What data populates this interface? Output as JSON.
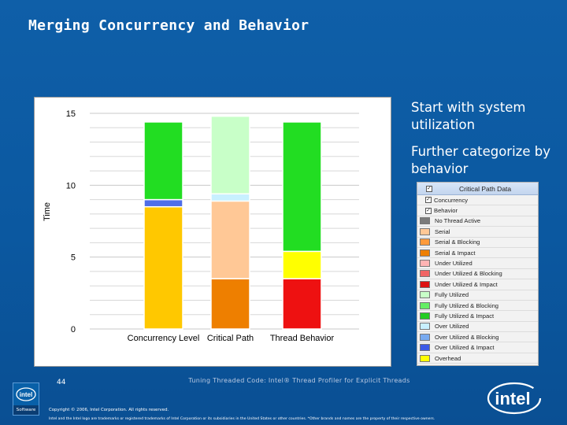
{
  "slide": {
    "title": "Merging Concurrency and Behavior",
    "callout_1": "Start with system utilization",
    "callout_2": "Further categorize by behavior",
    "footer_title": "Tuning Threaded Code: Intel® Thread Profiler for Explicit Threads",
    "page_number": "44",
    "copyright": "Copyright © 2006, Intel Corporation. All rights reserved.",
    "legal": "Intel and the Intel logo are trademarks or registered trademarks of Intel Corporation or its subsidiaries in the United States or other countries. *Other brands and names are the property of their respective owners.",
    "software_badge": "Software",
    "logo_text": "intel"
  },
  "chart_data": {
    "type": "bar",
    "stacked": true,
    "ylabel": "Time",
    "xlabel": "",
    "ylim": [
      0,
      15
    ],
    "yticks": [
      "0",
      "5",
      "10",
      "15"
    ],
    "grid": true,
    "categories": [
      "Concurrency Level",
      "Critical Path",
      "Thread Behavior"
    ],
    "stacks": [
      {
        "category": "Concurrency Level",
        "segments": [
          {
            "value": 8.5,
            "color": "#ffc800"
          },
          {
            "value": 0.5,
            "color": "#4f6ee8"
          },
          {
            "value": 5.4,
            "color": "#22dd22"
          }
        ]
      },
      {
        "category": "Critical Path",
        "segments": [
          {
            "value": 3.5,
            "color": "#ee7f00"
          },
          {
            "value": 5.4,
            "color": "#ffc896"
          },
          {
            "value": 0.5,
            "color": "#c8f0ff"
          },
          {
            "value": 5.4,
            "color": "#c8ffc8"
          }
        ]
      },
      {
        "category": "Thread Behavior",
        "segments": [
          {
            "value": 3.5,
            "color": "#ee1111"
          },
          {
            "value": 1.9,
            "color": "#ffff00"
          },
          {
            "value": 9.0,
            "color": "#22dd22"
          }
        ]
      }
    ]
  },
  "legend_panel": {
    "header": "Critical Path Data",
    "items": [
      {
        "label": "Concurrency",
        "checkbox": true,
        "color": ""
      },
      {
        "label": "Behavior",
        "checkbox": true,
        "color": ""
      },
      {
        "label": "No Thread Active",
        "checkbox": false,
        "color": "#7b7b7b"
      },
      {
        "label": "Serial",
        "checkbox": false,
        "color": "#ffc896"
      },
      {
        "label": "Serial & Blocking",
        "checkbox": false,
        "color": "#ff9b3c"
      },
      {
        "label": "Serial & Impact",
        "checkbox": false,
        "color": "#ee7f00"
      },
      {
        "label": "Under Utilized",
        "checkbox": false,
        "color": "#ffb4b4"
      },
      {
        "label": "Under Utilized & Blocking",
        "checkbox": false,
        "color": "#f06464"
      },
      {
        "label": "Under Utilized & Impact",
        "checkbox": false,
        "color": "#dd1111"
      },
      {
        "label": "Fully Utilized",
        "checkbox": false,
        "color": "#c8ffc8"
      },
      {
        "label": "Fully Utilized & Blocking",
        "checkbox": false,
        "color": "#64ee64"
      },
      {
        "label": "Fully Utilized & Impact",
        "checkbox": false,
        "color": "#22cc22"
      },
      {
        "label": "Over Utilized",
        "checkbox": false,
        "color": "#c8f0ff"
      },
      {
        "label": "Over Utilized & Blocking",
        "checkbox": false,
        "color": "#78aaf0"
      },
      {
        "label": "Over Utilized & Impact",
        "checkbox": false,
        "color": "#3c5ae6"
      },
      {
        "label": "Overhead",
        "checkbox": false,
        "color": "#ffff00"
      }
    ]
  }
}
